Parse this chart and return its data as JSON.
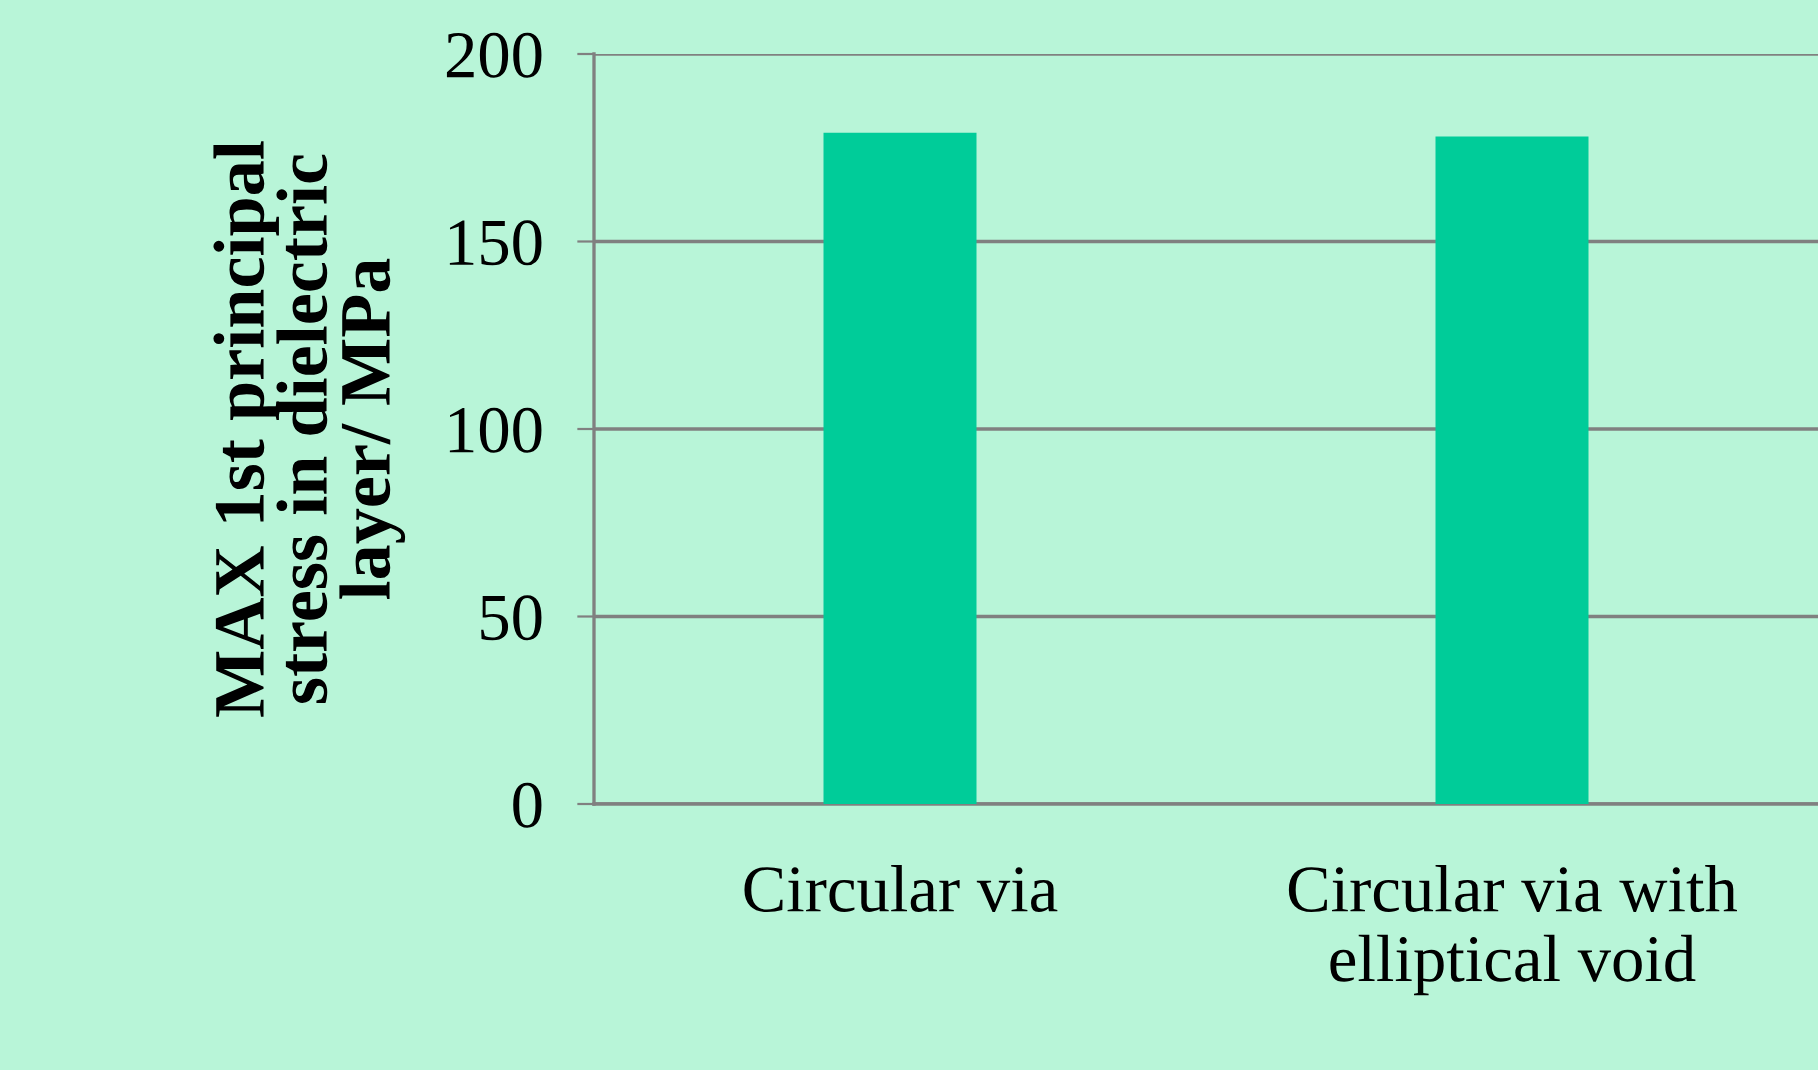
{
  "chart_data": {
    "type": "bar",
    "ylabel": "MAX 1st principal\nstress in dielectric\nlayer/ MPa",
    "categories": [
      "Circular via",
      "Circular via with\nelliptical void"
    ],
    "values": [
      179,
      178
    ],
    "color": "#00cc99",
    "ylim": [
      0,
      200
    ],
    "yticks": [
      0,
      50,
      100,
      150,
      200
    ],
    "grid": "y"
  }
}
